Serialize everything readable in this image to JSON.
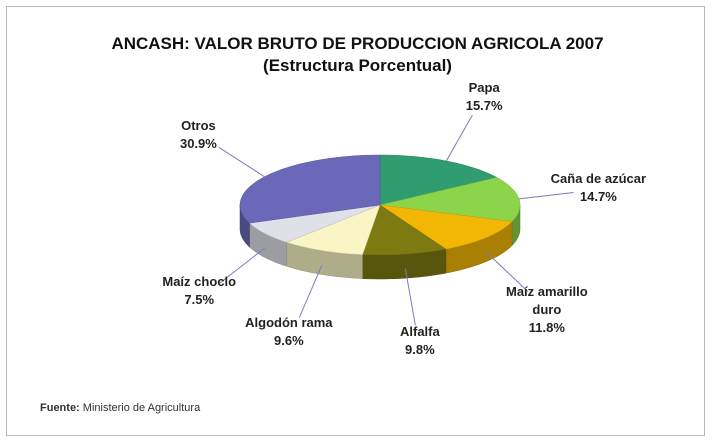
{
  "chart_data": {
    "type": "pie",
    "title": "ANCASH: VALOR BRUTO DE PRODUCCION AGRICOLA 2007",
    "subtitle": "(Estructura Porcentual)",
    "categories": [
      "Papa",
      "Caña de azúcar",
      "Maíz amarillo duro",
      "Alfalfa",
      "Algodón rama",
      "Maíz choclo",
      "Otros"
    ],
    "values": [
      15.7,
      14.7,
      11.8,
      9.8,
      9.6,
      7.5,
      30.9
    ],
    "value_labels": [
      "15.7%",
      "14.7%",
      "11.8%",
      "9.8%",
      "9.6%",
      "7.5%",
      "30.9%"
    ],
    "colors": [
      "#2f9d70",
      "#8cd44a",
      "#f2b705",
      "#7d7a12",
      "#faf5c4",
      "#dfe0e8",
      "#6a68b8"
    ],
    "source_label": "Fuente:",
    "source": "Ministerio de Agricultura"
  }
}
